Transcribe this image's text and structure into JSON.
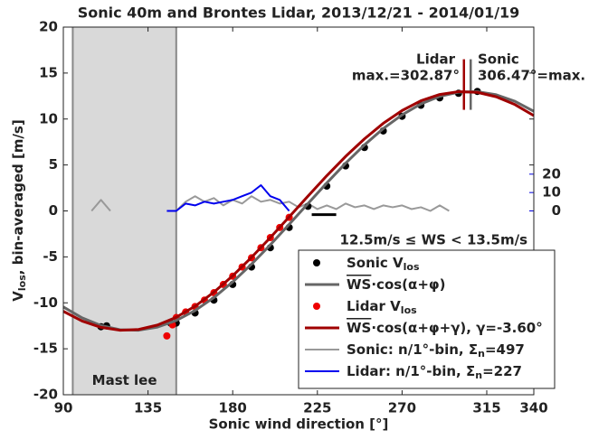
{
  "chart_data": {
    "type": "line",
    "title": "Sonic 40m and Brontes Lidar, 2013/12/21 - 2014/01/19",
    "x_label": "Sonic wind direction [°]",
    "y_label": {
      "main": "V",
      "sub": "los",
      "after": ", bin-averaged [m/s]"
    },
    "xlim": [
      90,
      340
    ],
    "xticks": [
      90,
      135,
      180,
      225,
      270,
      315,
      340
    ],
    "ylim": [
      -20,
      20
    ],
    "yticks": [
      -20,
      -15,
      -10,
      -5,
      0,
      5,
      10,
      15,
      20
    ],
    "y2lim": [
      -100,
      100
    ],
    "y2ticks": [
      0,
      10,
      20
    ],
    "y2color": "#0000dd",
    "grid": false,
    "shade": {
      "x": [
        95,
        150
      ],
      "color": "#d9d9d9",
      "label": "Mast lee"
    },
    "range_bar": {
      "x": [
        222,
        235
      ],
      "y": -0.4
    },
    "annotations": [
      {
        "text": "Lidar",
        "color": "#b00000"
      },
      {
        "text": "max.=302.87°",
        "color": "#b00000"
      },
      {
        "text": "Sonic",
        "color": "#666666"
      },
      {
        "text": "306.47°=max.",
        "color": "#666666"
      },
      {
        "text": "12.5m/s ≤ WS < 13.5m/s",
        "color": "#000000"
      }
    ],
    "legend": "lower right",
    "series": [
      {
        "name": "Sonic V",
        "name_sub": "los",
        "kind": "scatter",
        "color": "#000000",
        "x": [
          110,
          113,
          147,
          150,
          160,
          170,
          180,
          190,
          200,
          210,
          220,
          230,
          240,
          250,
          260,
          270,
          280,
          290,
          300,
          310
        ],
        "values": [
          -12.6,
          -12.5,
          -12.2,
          -12.2,
          -11.1,
          -9.7,
          -8.0,
          -6.1,
          -4.0,
          -1.8,
          0.5,
          2.7,
          4.9,
          6.9,
          8.7,
          10.3,
          11.5,
          12.3,
          12.8,
          13.0
        ]
      },
      {
        "name_over": "WS",
        "name": "·cos(α+φ)",
        "kind": "line",
        "color": "#666666",
        "max": 306.47,
        "x": [
          90,
          100,
          110,
          120,
          130,
          140,
          150,
          160,
          170,
          180,
          190,
          200,
          210,
          220,
          230,
          240,
          250,
          260,
          270,
          280,
          290,
          300,
          310,
          320,
          330,
          340
        ],
        "values": [
          -10.45,
          -11.64,
          -12.47,
          -12.92,
          -12.98,
          -12.64,
          -11.92,
          -10.84,
          -9.43,
          -7.73,
          -5.79,
          -3.69,
          -1.46,
          0.8,
          3.04,
          5.19,
          7.18,
          8.96,
          10.45,
          11.64,
          12.47,
          12.92,
          12.98,
          12.64,
          11.92,
          10.84
        ]
      },
      {
        "name": "Lidar V",
        "name_sub": "los",
        "kind": "scatter",
        "color": "#ee0000",
        "x": [
          145,
          148,
          150,
          155,
          160,
          165,
          170,
          175,
          180,
          185,
          190,
          195,
          200,
          205,
          210
        ],
        "values": [
          -13.6,
          -12.4,
          -11.6,
          -11.0,
          -10.4,
          -9.7,
          -8.9,
          -8.0,
          -7.1,
          -6.1,
          -5.1,
          -4.0,
          -2.9,
          -1.8,
          -0.7
        ]
      },
      {
        "name_over": "WS",
        "name": "·cos(α+φ+γ), γ=-3.60°",
        "kind": "line",
        "color": "#a00000",
        "max": 302.87,
        "x": [
          90,
          100,
          110,
          120,
          130,
          140,
          150,
          160,
          170,
          180,
          190,
          200,
          210,
          220,
          230,
          240,
          250,
          260,
          270,
          280,
          290,
          300,
          310,
          320,
          330,
          340
        ],
        "values": [
          -10.92,
          -11.98,
          -12.67,
          -12.98,
          -12.9,
          -12.42,
          -11.57,
          -10.37,
          -8.84,
          -7.06,
          -5.05,
          -2.9,
          -0.65,
          1.61,
          3.83,
          5.93,
          7.84,
          9.53,
          10.92,
          11.98,
          12.67,
          12.98,
          12.9,
          12.42,
          11.57,
          10.37
        ]
      },
      {
        "name": "Sonic: n/1°-bin, Σ",
        "name_sub": "n",
        "name_after": "=497",
        "kind": "line",
        "axis": "y2",
        "color": "#999999",
        "x": [
          100,
          105,
          110,
          115,
          120,
          125,
          130,
          135,
          140,
          145,
          150,
          155,
          160,
          165,
          170,
          175,
          180,
          185,
          190,
          195,
          200,
          205,
          210,
          215,
          220,
          225,
          230,
          235,
          240,
          245,
          250,
          255,
          260,
          265,
          270,
          275,
          280,
          285,
          290,
          295,
          300
        ],
        "values": [
          null,
          0,
          6,
          0,
          null,
          null,
          null,
          null,
          null,
          null,
          0,
          5,
          8,
          5,
          7,
          3,
          6,
          4,
          8,
          5,
          6,
          4,
          5,
          2,
          4,
          1,
          3,
          1,
          4,
          2,
          3,
          1,
          3,
          2,
          3,
          1,
          2,
          0,
          3,
          0,
          null
        ]
      },
      {
        "name": "Lidar: n/1°-bin, Σ",
        "name_sub": "n",
        "name_after": "=227",
        "kind": "line",
        "axis": "y2",
        "color": "#0000ee",
        "x": [
          145,
          150,
          155,
          160,
          165,
          170,
          175,
          180,
          185,
          190,
          195,
          200,
          205,
          210
        ],
        "values": [
          0,
          0,
          4,
          3,
          5,
          4,
          5,
          6,
          8,
          10,
          14,
          8,
          6,
          0
        ]
      }
    ]
  }
}
